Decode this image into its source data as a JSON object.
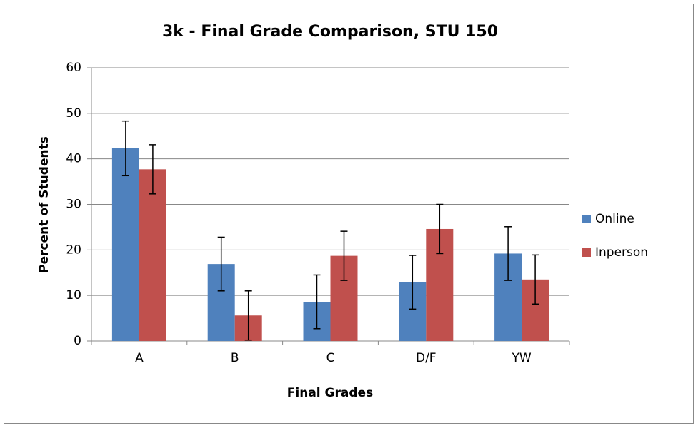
{
  "chart_data": {
    "type": "bar",
    "title": "3k - Final Grade Comparison, STU 150",
    "x_label": "Final Grades",
    "y_label": "Percent of Students",
    "categories": [
      "A",
      "B",
      "C",
      "D/F",
      "YW"
    ],
    "series": [
      {
        "name": "Online",
        "color": "#4f81bd",
        "values": [
          42.3,
          16.9,
          8.6,
          12.9,
          19.2
        ],
        "errors": [
          6.0,
          5.9,
          5.9,
          5.9,
          5.9
        ]
      },
      {
        "name": "Inperson",
        "color": "#c0504d",
        "values": [
          37.7,
          5.6,
          18.7,
          24.6,
          13.5
        ],
        "errors": [
          5.4,
          5.4,
          5.4,
          5.4,
          5.4
        ]
      }
    ],
    "ylim": [
      0,
      60
    ],
    "yticks": [
      0,
      10,
      20,
      30,
      40,
      50,
      60
    ],
    "grid": true,
    "legend": "right"
  }
}
